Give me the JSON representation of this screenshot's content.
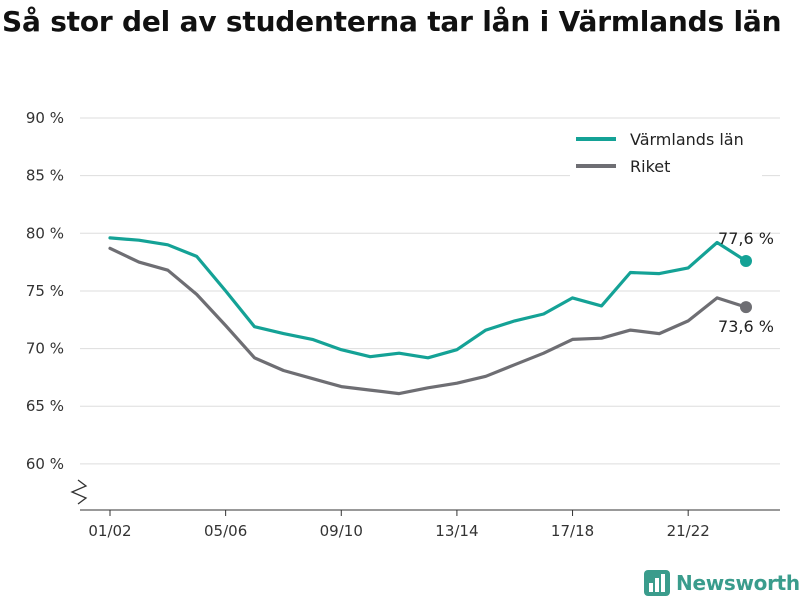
{
  "chart_data": {
    "type": "line",
    "title": "Så stor del av studenterna tar lån i Värmlands län",
    "x": [
      "01/02",
      "02/03",
      "03/04",
      "04/05",
      "05/06",
      "06/07",
      "07/08",
      "08/09",
      "09/10",
      "10/11",
      "11/12",
      "12/13",
      "13/14",
      "14/15",
      "15/16",
      "16/17",
      "17/18",
      "18/19",
      "19/20",
      "20/21",
      "21/22",
      "22/23",
      "23/24"
    ],
    "x_tick_labels": [
      "01/02",
      "05/06",
      "09/10",
      "13/14",
      "17/18",
      "21/22"
    ],
    "y_tick_labels": [
      "60 %",
      "65 %",
      "70 %",
      "75 %",
      "80 %",
      "85 %",
      "90 %"
    ],
    "ylim": [
      56,
      90
    ],
    "grid": true,
    "axis_break": true,
    "legend_position": "top-right",
    "series": [
      {
        "name": "Värmlands län",
        "color": "#14a296",
        "values": [
          79.6,
          79.4,
          79.0,
          78.0,
          75.0,
          71.9,
          71.3,
          70.8,
          69.9,
          69.3,
          69.6,
          69.2,
          69.9,
          71.6,
          72.4,
          73.0,
          74.4,
          73.7,
          76.6,
          76.5,
          77.0,
          79.2,
          77.6
        ],
        "end_label": "77,6 %"
      },
      {
        "name": "Riket",
        "color": "#6e6e73",
        "values": [
          78.7,
          77.5,
          76.8,
          74.7,
          72.0,
          69.2,
          68.1,
          67.4,
          66.7,
          66.4,
          66.1,
          66.6,
          67.0,
          67.6,
          68.6,
          69.6,
          70.8,
          70.9,
          71.6,
          71.3,
          72.4,
          74.4,
          73.6
        ],
        "end_label": "73,6 %"
      }
    ]
  },
  "brand": {
    "name": "Newsworthy"
  }
}
